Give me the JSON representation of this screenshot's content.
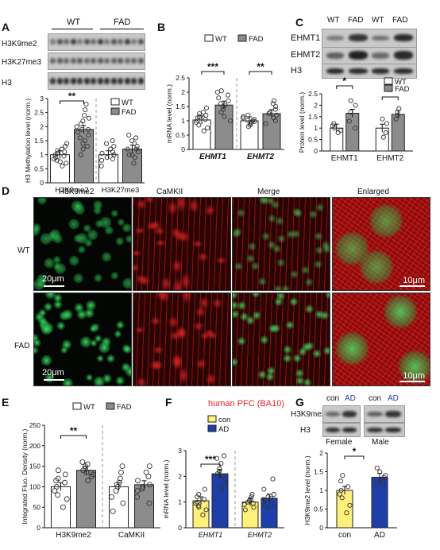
{
  "panels": {
    "A": "A",
    "B": "B",
    "C": "C",
    "D": "D",
    "E": "E",
    "F": "F",
    "G": "G"
  },
  "colors": {
    "wt": "#ffffff",
    "fad": "#8c8c8c",
    "con": "#fff07a",
    "ad": "#1f3fa8",
    "human_title": "#e8202a",
    "red_stain": "#d01010",
    "green_stain": "#22b34a"
  },
  "panel_a": {
    "group_wt": "WT",
    "group_fad": "FAD",
    "blot_labels": [
      "H3K9me2",
      "H3K27me3",
      "H3"
    ],
    "legend": [
      "WT",
      "FAD"
    ]
  },
  "panel_b": {
    "legend": [
      "WT",
      "FAD"
    ]
  },
  "panel_c": {
    "lane_labels": [
      "WT",
      "FAD",
      "WT",
      "FAD"
    ],
    "blot_labels": [
      "EHMT1",
      "EHMT2",
      "H3"
    ],
    "legend": [
      "WT",
      "FAD"
    ]
  },
  "panel_d": {
    "columns": [
      "H3K9me2",
      "CaMKII",
      "Merge",
      "Enlarged"
    ],
    "rows": [
      "WT",
      "FAD"
    ],
    "scale_small": "20μm",
    "scale_large": "10μm"
  },
  "panel_e": {
    "legend": [
      "WT",
      "FAD"
    ]
  },
  "panel_f": {
    "title": "human PFC (BA10)",
    "legend": [
      "con",
      "AD"
    ]
  },
  "panel_g": {
    "lane_labels": [
      "con",
      "AD",
      "con",
      "AD"
    ],
    "blot_labels": [
      "H3K9me2",
      "H3"
    ],
    "sexes": [
      "Female",
      "Male"
    ]
  },
  "chart_data": [
    {
      "panel": "A",
      "type": "bar",
      "ylabel": "H3 Methylation level (norm.)",
      "ylim": [
        0,
        3
      ],
      "yticks": [
        0,
        0.5,
        1,
        1.5,
        2,
        2.5,
        3
      ],
      "categories": [
        "H3K9me2",
        "H3K27me3"
      ],
      "series": [
        {
          "name": "WT",
          "values": [
            1.0,
            1.0
          ]
        },
        {
          "name": "FAD",
          "values": [
            1.9,
            1.2
          ]
        }
      ],
      "significance": [
        "**",
        ""
      ],
      "points": {
        "H3K9me2": {
          "WT": [
            0.6,
            0.7,
            0.8,
            0.85,
            0.9,
            0.95,
            1.0,
            1.05,
            1.1,
            1.15,
            1.2,
            1.3,
            1.4,
            0.75
          ],
          "FAD": [
            1.0,
            1.2,
            1.4,
            1.5,
            1.6,
            1.7,
            1.8,
            1.9,
            2.0,
            2.1,
            2.2,
            2.4,
            2.6,
            2.8,
            1.3,
            1.9,
            2.3
          ]
        },
        "H3K27me3": {
          "WT": [
            0.6,
            0.8,
            0.9,
            1.0,
            1.05,
            1.1,
            1.2,
            1.3,
            1.4,
            1.5,
            0.85
          ],
          "FAD": [
            0.7,
            0.9,
            1.0,
            1.1,
            1.2,
            1.3,
            1.4,
            1.5,
            1.6,
            1.7,
            1.2,
            1.0
          ]
        }
      }
    },
    {
      "panel": "B",
      "type": "bar",
      "ylabel": "mRNA level (norm.)",
      "ylim": [
        0,
        2.5
      ],
      "yticks": [
        0,
        0.5,
        1,
        1.5,
        2,
        2.5
      ],
      "categories": [
        "EHMT1",
        "EHMT2"
      ],
      "series": [
        {
          "name": "WT",
          "values": [
            1.03,
            1.0
          ]
        },
        {
          "name": "FAD",
          "values": [
            1.55,
            1.25
          ]
        }
      ],
      "significance": [
        "***",
        "**"
      ],
      "points": {
        "EHMT1": {
          "WT": [
            0.65,
            0.75,
            0.85,
            0.95,
            1.0,
            1.05,
            1.1,
            1.15,
            1.2,
            1.25,
            1.3,
            1.45
          ],
          "FAD": [
            1.0,
            1.15,
            1.3,
            1.4,
            1.5,
            1.55,
            1.6,
            1.7,
            1.8,
            1.9,
            2.0,
            2.05
          ]
        },
        "EHMT2": {
          "WT": [
            0.8,
            0.85,
            0.9,
            0.95,
            1.0,
            1.02,
            1.05,
            1.1,
            1.15,
            1.2,
            0.98
          ],
          "FAD": [
            0.9,
            1.0,
            1.1,
            1.2,
            1.3,
            1.4,
            1.5,
            1.6,
            1.7,
            1.25
          ]
        }
      }
    },
    {
      "panel": "C",
      "type": "bar",
      "ylabel": "Protein level (norm.)",
      "ylim": [
        0,
        2.5
      ],
      "yticks": [
        0,
        0.5,
        1,
        1.5,
        2,
        2.5
      ],
      "categories": [
        "EHMT1",
        "EHMT2"
      ],
      "series": [
        {
          "name": "WT",
          "values": [
            1.0,
            1.0
          ]
        },
        {
          "name": "FAD",
          "values": [
            1.65,
            1.6
          ]
        }
      ],
      "significance": [
        "*",
        "*"
      ],
      "points": {
        "EHMT1": {
          "WT": [
            0.8,
            0.9,
            1.0,
            1.1,
            1.2
          ],
          "FAD": [
            1.0,
            1.3,
            1.7,
            2.0,
            2.2
          ]
        },
        "EHMT2": {
          "WT": [
            0.6,
            0.8,
            1.2,
            1.4
          ],
          "FAD": [
            1.4,
            1.55,
            1.7,
            1.85
          ]
        }
      }
    },
    {
      "panel": "E",
      "type": "bar",
      "ylabel": "Integrated Fluo. Density (norm.)",
      "ylim": [
        0,
        250
      ],
      "yticks": [
        0,
        50,
        100,
        150,
        200,
        250
      ],
      "categories": [
        "H3K9me2",
        "CaMKII"
      ],
      "series": [
        {
          "name": "WT",
          "values": [
            100,
            100
          ]
        },
        {
          "name": "FAD",
          "values": [
            140,
            105
          ]
        }
      ],
      "significance": [
        "**",
        ""
      ],
      "points": {
        "H3K9me2": {
          "WT": [
            50,
            70,
            80,
            90,
            100,
            110,
            115,
            120,
            130,
            140
          ],
          "FAD": [
            115,
            125,
            130,
            135,
            140,
            145,
            150,
            155,
            160,
            135
          ]
        },
        "CaMKII": {
          "WT": [
            40,
            60,
            75,
            90,
            100,
            110,
            120,
            135,
            150,
            105
          ],
          "FAD": [
            60,
            75,
            90,
            100,
            105,
            115,
            125,
            135,
            150,
            95
          ]
        }
      }
    },
    {
      "panel": "F",
      "type": "bar",
      "ylabel": "mRNA level (norm.)",
      "ylim": [
        0,
        3
      ],
      "yticks": [
        0,
        1,
        2,
        3
      ],
      "categories": [
        "EHMT1",
        "EHMT2"
      ],
      "series": [
        {
          "name": "con",
          "values": [
            1.05,
            1.0
          ]
        },
        {
          "name": "AD",
          "values": [
            2.1,
            1.15
          ]
        }
      ],
      "significance": [
        "***",
        ""
      ],
      "points": {
        "EHMT1": {
          "WT": [
            0.5,
            0.7,
            0.85,
            0.95,
            1.0,
            1.1,
            1.2,
            1.3,
            1.5,
            0.8
          ],
          "FAD": [
            1.5,
            1.7,
            1.9,
            2.0,
            2.1,
            2.2,
            2.3,
            2.5,
            2.7,
            2.8
          ]
        },
        "EHMT2": {
          "WT": [
            0.7,
            0.8,
            0.9,
            1.0,
            1.05,
            1.1,
            1.2,
            1.3,
            0.95
          ],
          "FAD": [
            0.8,
            0.9,
            1.0,
            1.1,
            1.2,
            1.3,
            1.5,
            1.9,
            1.15
          ]
        }
      }
    },
    {
      "panel": "G",
      "type": "bar",
      "ylabel": "H3K9me2 level (norm.)",
      "ylim": [
        0,
        2
      ],
      "yticks": [
        0,
        0.5,
        1,
        1.5,
        2
      ],
      "categories": [
        "con",
        "AD"
      ],
      "series": [
        {
          "name": "",
          "values": [
            1.0,
            1.35
          ]
        }
      ],
      "significance": [
        "*"
      ],
      "points": {
        "con": [
          0.4,
          0.6,
          0.8,
          0.9,
          1.0,
          1.1,
          1.25,
          1.4
        ],
        "AD": [
          1.15,
          1.2,
          1.3,
          1.35,
          1.4,
          1.5,
          1.6
        ]
      }
    }
  ]
}
